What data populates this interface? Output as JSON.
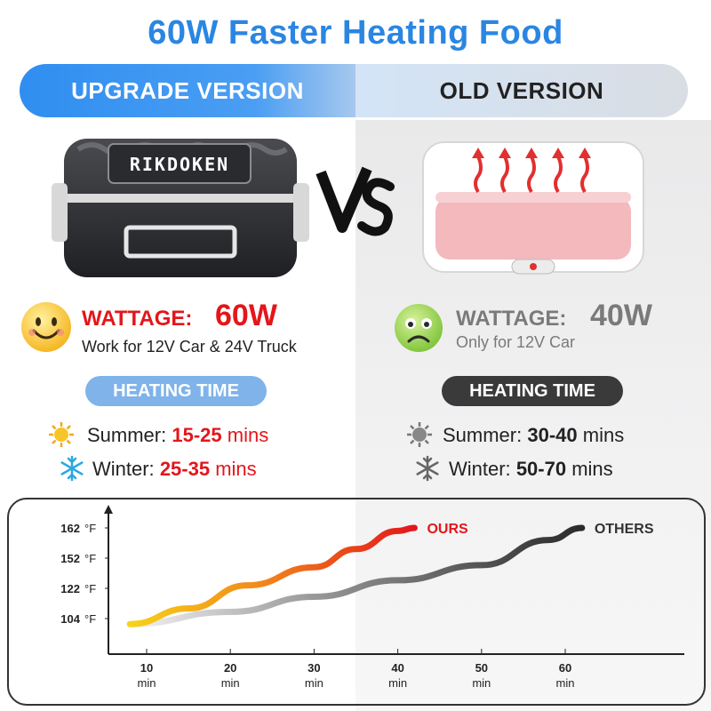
{
  "headline": "60W Faster Heating Food",
  "versions": {
    "upgrade": "UPGRADE VERSION",
    "old": "OLD VERSION"
  },
  "brand_logo": "RIKDOKEN",
  "upgrade": {
    "wattage_label": "WATTAGE:",
    "wattage_value": "60W",
    "note": "Work for 12V Car & 24V Truck",
    "heating_time_label": "HEATING TIME",
    "summer_label": "Summer:",
    "summer_value": "15-25",
    "summer_unit": "mins",
    "winter_label": "Winter:",
    "winter_value": "25-35",
    "winter_unit": "mins",
    "face_icon": "happy-face-icon",
    "accent": "#e3161b"
  },
  "old": {
    "wattage_label": "WATTAGE:",
    "wattage_value": "40W",
    "note": "Only for 12V Car",
    "heating_time_label": "HEATING TIME",
    "summer_label": "Summer:",
    "summer_value": "30-40",
    "summer_unit": "mins",
    "winter_label": "Winter:",
    "winter_value": "50-70",
    "winter_unit": "mins",
    "face_icon": "sad-face-icon",
    "accent": "#222222"
  },
  "colors": {
    "blue": "#2a86e2",
    "red": "#e3161b",
    "gray_text": "#7a7a7a",
    "dark": "#333333"
  },
  "chart_data": {
    "type": "line",
    "x": [
      10,
      20,
      30,
      40,
      50,
      60
    ],
    "x_tick_labels": [
      "10",
      "20",
      "30",
      "40",
      "50",
      "60"
    ],
    "x_unit": "min",
    "y_ticks": [
      104,
      122,
      152,
      162
    ],
    "y_unit": "°F",
    "series": [
      {
        "name": "OURS",
        "color": "#e3161b",
        "points": [
          [
            8,
            100
          ],
          [
            15,
            110
          ],
          [
            22,
            125
          ],
          [
            30,
            143
          ],
          [
            35,
            155
          ],
          [
            40,
            161
          ],
          [
            42,
            162
          ]
        ]
      },
      {
        "name": "OTHERS",
        "color": "#333333",
        "points": [
          [
            8,
            100
          ],
          [
            20,
            108
          ],
          [
            30,
            117
          ],
          [
            40,
            130
          ],
          [
            50,
            145
          ],
          [
            58,
            158
          ],
          [
            62,
            162
          ]
        ]
      }
    ]
  }
}
